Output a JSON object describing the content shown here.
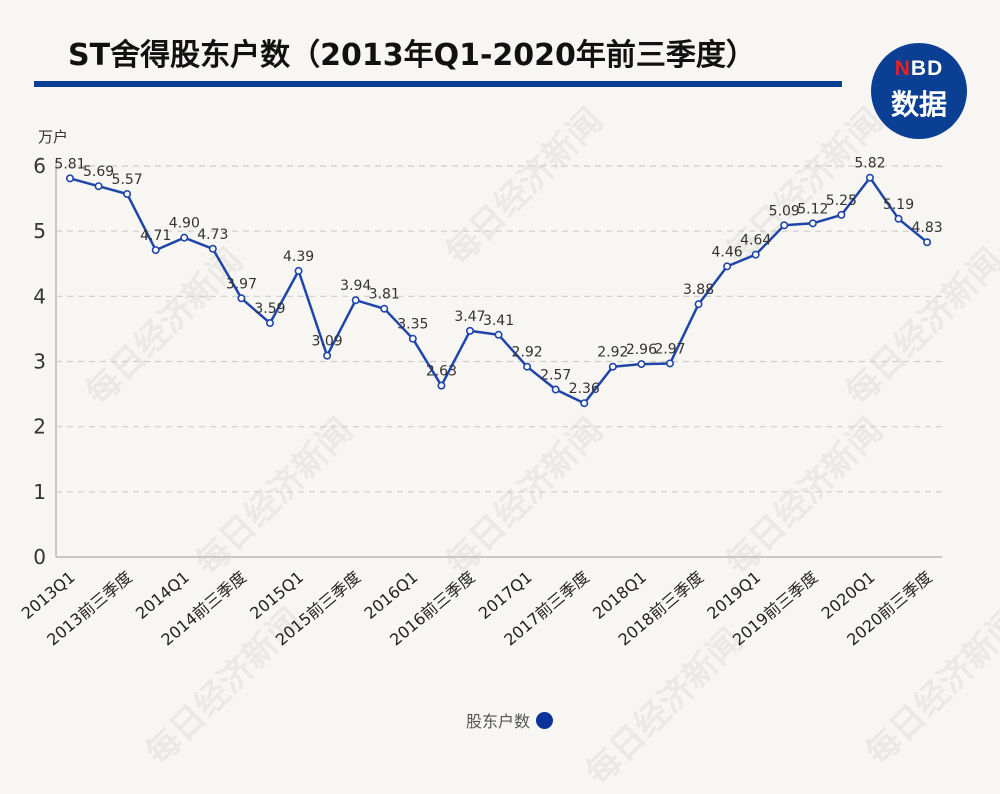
{
  "header": {
    "title": "ST舍得股东户数（2013年Q1-2020年前三季度）",
    "logo_top_n": "N",
    "logo_top_rest": "BD",
    "logo_bottom": "数据"
  },
  "watermark_text": "每日经济新闻",
  "legend": {
    "label": "股东户数",
    "color": "#0b3399"
  },
  "colors": {
    "line": "#1f45a8",
    "brand": "#0b3f94",
    "grid": "#cfcdc9",
    "axis": "#c8c8c8",
    "background": "#f8f6f2"
  },
  "chart_data": {
    "type": "line",
    "title": "ST舍得股东户数（2013年Q1-2020年前三季度）",
    "xlabel": "",
    "ylabel": "万户",
    "ylim": [
      0,
      6
    ],
    "yticks": [
      0,
      1,
      2,
      3,
      4,
      5,
      6
    ],
    "grid": "horizontal dashed",
    "legend_position": "bottom",
    "x_tick_labels": [
      "2013Q1",
      "2013前三季度",
      "2014Q1",
      "2014前三季度",
      "2015Q1",
      "2015前三季度",
      "2016Q1",
      "2016前三季度",
      "2017Q1",
      "2017前三季度",
      "2018Q1",
      "2018前三季度",
      "2019Q1",
      "2019前三季度",
      "2020Q1",
      "2020前三季度"
    ],
    "x_tick_every": 2,
    "series": [
      {
        "name": "股东户数",
        "values": [
          5.81,
          5.69,
          5.57,
          4.71,
          4.9,
          4.73,
          3.97,
          3.59,
          4.39,
          3.09,
          3.94,
          3.81,
          3.35,
          2.63,
          3.47,
          3.41,
          2.92,
          2.57,
          2.36,
          2.92,
          2.96,
          2.97,
          3.88,
          4.46,
          4.64,
          5.09,
          5.12,
          5.25,
          5.82,
          5.19,
          4.83
        ],
        "labels": [
          "5.81",
          "5.69",
          "5.57",
          "4.71",
          "4.90",
          "4.73",
          "3.97",
          "3.59",
          "4.39",
          "3.09",
          "3.94",
          "3.81",
          "3.35",
          "2.63",
          "3.47",
          "3.41",
          "2.92",
          "2.57",
          "2.36",
          "2.92",
          "2.96",
          "2.97",
          "3.88",
          "4.46",
          "4.64",
          "5.09",
          "5.12",
          "5.25",
          "5.82",
          "5.19",
          "4.83"
        ]
      }
    ]
  }
}
